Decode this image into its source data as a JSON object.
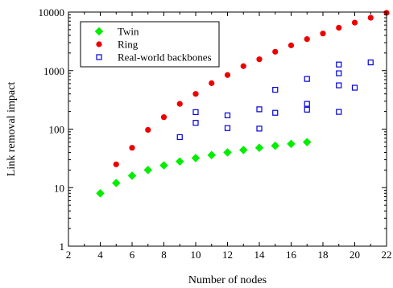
{
  "chart_data": {
    "type": "scatter",
    "xlabel": "Number of nodes",
    "ylabel": "Link removal impact",
    "xlim": [
      2,
      22
    ],
    "ylim": [
      1,
      10000
    ],
    "y_scale": "log",
    "x_ticks": [
      "2",
      "4",
      "6",
      "8",
      "10",
      "12",
      "14",
      "16",
      "18",
      "20",
      "22"
    ],
    "y_ticks": [
      "1",
      "10",
      "100",
      "1000",
      "10000"
    ],
    "grid": false,
    "legend_position": "top-left",
    "series": [
      {
        "name": "Twin",
        "marker": "diamond",
        "color": "#00ee00",
        "points": [
          [
            4,
            8
          ],
          [
            5,
            12
          ],
          [
            6,
            16
          ],
          [
            7,
            20
          ],
          [
            8,
            24
          ],
          [
            9,
            28
          ],
          [
            10,
            32
          ],
          [
            11,
            36
          ],
          [
            12,
            40
          ],
          [
            13,
            44
          ],
          [
            14,
            48
          ],
          [
            15,
            52
          ],
          [
            16,
            56
          ],
          [
            17,
            60
          ]
        ]
      },
      {
        "name": "Ring",
        "marker": "circle",
        "color": "#ee0000",
        "points": [
          [
            4,
            8
          ],
          [
            5,
            25
          ],
          [
            6,
            48
          ],
          [
            7,
            97
          ],
          [
            8,
            160
          ],
          [
            9,
            270
          ],
          [
            10,
            400
          ],
          [
            11,
            610
          ],
          [
            12,
            840
          ],
          [
            13,
            1190
          ],
          [
            14,
            1560
          ],
          [
            15,
            2100
          ],
          [
            16,
            2700
          ],
          [
            17,
            3450
          ],
          [
            18,
            4300
          ],
          [
            19,
            5400
          ],
          [
            20,
            6600
          ],
          [
            21,
            8000
          ],
          [
            22,
            9700
          ]
        ]
      },
      {
        "name": "Real-world backbones",
        "marker": "square-open",
        "color": "#0000dd",
        "points": [
          [
            9,
            73
          ],
          [
            10,
            195
          ],
          [
            10,
            128
          ],
          [
            12,
            172
          ],
          [
            12,
            104
          ],
          [
            14,
            218
          ],
          [
            14,
            102
          ],
          [
            15,
            470
          ],
          [
            15,
            190
          ],
          [
            17,
            720
          ],
          [
            17,
            270
          ],
          [
            17,
            215
          ],
          [
            19,
            1270
          ],
          [
            19,
            900
          ],
          [
            19,
            560
          ],
          [
            19,
            197
          ],
          [
            20,
            510
          ],
          [
            21,
            1380
          ]
        ]
      }
    ]
  }
}
